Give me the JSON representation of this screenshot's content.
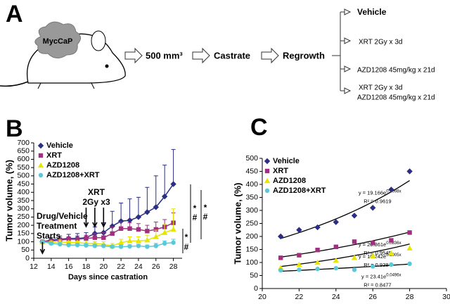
{
  "panel_a": {
    "label": "A",
    "tumor": "MycCaP",
    "steps": [
      "500 mm³",
      "Castrate",
      "Regrowth"
    ],
    "arms": [
      [
        "Vehicle"
      ],
      [
        "XRT 2Gy x 3d"
      ],
      [
        "AZD1208  45mg/kg x 21d"
      ],
      [
        "XRT 2Gy x 3d",
        "AZD1208  45mg/kg x 21d"
      ]
    ]
  },
  "chart_data": [
    {
      "panel_label": "B",
      "type": "line",
      "y_label": "Tumor volume, (%)",
      "x_label": "Days since castration",
      "x": [
        13,
        14,
        15,
        16,
        17,
        18,
        19,
        20,
        21,
        22,
        23,
        24,
        25,
        26,
        27,
        28
      ],
      "xlim": [
        12,
        29
      ],
      "xticks": [
        12,
        14,
        16,
        18,
        20,
        22,
        24,
        26,
        28
      ],
      "ylim": [
        0,
        700
      ],
      "yticks": [
        0,
        50,
        100,
        150,
        200,
        250,
        300,
        350,
        400,
        450,
        500,
        550,
        600,
        650,
        700
      ],
      "series": [
        {
          "name": "Vehicle",
          "color": "#2b2e83",
          "marker": "diamond",
          "values": [
            100,
            110,
            115,
            120,
            120,
            125,
            150,
            155,
            195,
            225,
            230,
            250,
            280,
            310,
            375,
            450
          ],
          "errors": [
            5,
            15,
            20,
            25,
            30,
            30,
            40,
            60,
            90,
            110,
            130,
            120,
            150,
            190,
            190,
            210
          ]
        },
        {
          "name": "XRT",
          "color": "#a0307f",
          "marker": "square",
          "values": [
            100,
            105,
            110,
            115,
            115,
            120,
            125,
            125,
            150,
            180,
            180,
            175,
            165,
            175,
            190,
            215
          ],
          "errors": [
            5,
            10,
            15,
            15,
            20,
            20,
            25,
            30,
            40,
            40,
            35,
            35,
            35,
            45,
            45,
            60
          ]
        },
        {
          "name": "AZD1208",
          "color": "#e6e600",
          "marker": "triangle",
          "values": [
            100,
            95,
            100,
            95,
            95,
            90,
            90,
            85,
            75,
            95,
            105,
            105,
            110,
            130,
            155,
            175
          ],
          "errors": [
            5,
            10,
            10,
            10,
            10,
            10,
            10,
            15,
            15,
            20,
            25,
            25,
            30,
            40,
            50,
            125
          ]
        },
        {
          "name": "AZD1208+XRT",
          "color": "#5bc8d8",
          "marker": "circle",
          "values": [
            100,
            90,
            85,
            80,
            80,
            78,
            75,
            75,
            70,
            70,
            72,
            75,
            70,
            75,
            90,
            95
          ],
          "errors": [
            5,
            10,
            10,
            10,
            10,
            10,
            10,
            10,
            10,
            10,
            10,
            10,
            10,
            15,
            15,
            20
          ]
        }
      ],
      "xrt_note": {
        "lines": [
          "XRT",
          "2Gy x3"
        ],
        "arrow_days": [
          18,
          19,
          20
        ]
      },
      "treatment_note": {
        "lines": [
          "Drug/Vehicle",
          "Treatment",
          "Starts"
        ],
        "arrow_day": 13
      },
      "significance": [
        "*",
        "#",
        "*",
        "#",
        "*",
        "#"
      ]
    },
    {
      "panel_label": "C",
      "type": "scatter",
      "y_label": "Tumor volume, (%)",
      "x_label": "Days since castration",
      "x": [
        21,
        22,
        23,
        24,
        25,
        26,
        27,
        28
      ],
      "xlim": [
        20,
        30
      ],
      "xticks": [
        20,
        22,
        24,
        26,
        28,
        30
      ],
      "ylim": [
        0,
        500
      ],
      "yticks": [
        0,
        50,
        100,
        150,
        200,
        250,
        300,
        350,
        400,
        450,
        500
      ],
      "series": [
        {
          "name": "Vehicle",
          "color": "#2b2e83",
          "marker": "diamond",
          "values": [
            200,
            225,
            235,
            255,
            280,
            310,
            380,
            450
          ],
          "trend": {
            "a": 19.166,
            "b": 0.1098,
            "equation": "y = 19.166e",
            "exponent": "0.1098x",
            "r2": "R² = 0.9619"
          }
        },
        {
          "name": "XRT",
          "color": "#a0307f",
          "marker": "square",
          "values": [
            118,
            128,
            148,
            160,
            180,
            175,
            185,
            215
          ],
          "trend": {
            "a": 20.861,
            "b": 0.0836,
            "equation": "y = 20.861e",
            "exponent": "0.0836x",
            "r2": "R² = 0.9545"
          }
        },
        {
          "name": "AZD1208",
          "color": "#e6e600",
          "marker": "triangle",
          "values": [
            80,
            92,
            100,
            108,
            118,
            125,
            135,
            155
          ],
          "trend": {
            "a": 10.242,
            "b": 0.1005,
            "equation": "y = 10.242e",
            "exponent": "0.1005x",
            "r2": "R² = 0.9384"
          }
        },
        {
          "name": "AZD1208+XRT",
          "color": "#5bc8d8",
          "marker": "circle",
          "values": [
            70,
            72,
            75,
            78,
            72,
            85,
            92,
            95
          ],
          "trend": {
            "a": 23.41,
            "b": 0.0496,
            "equation": "y = 23.41e",
            "exponent": "0.0496x",
            "r2": "R² = 0.8477"
          }
        }
      ]
    }
  ]
}
